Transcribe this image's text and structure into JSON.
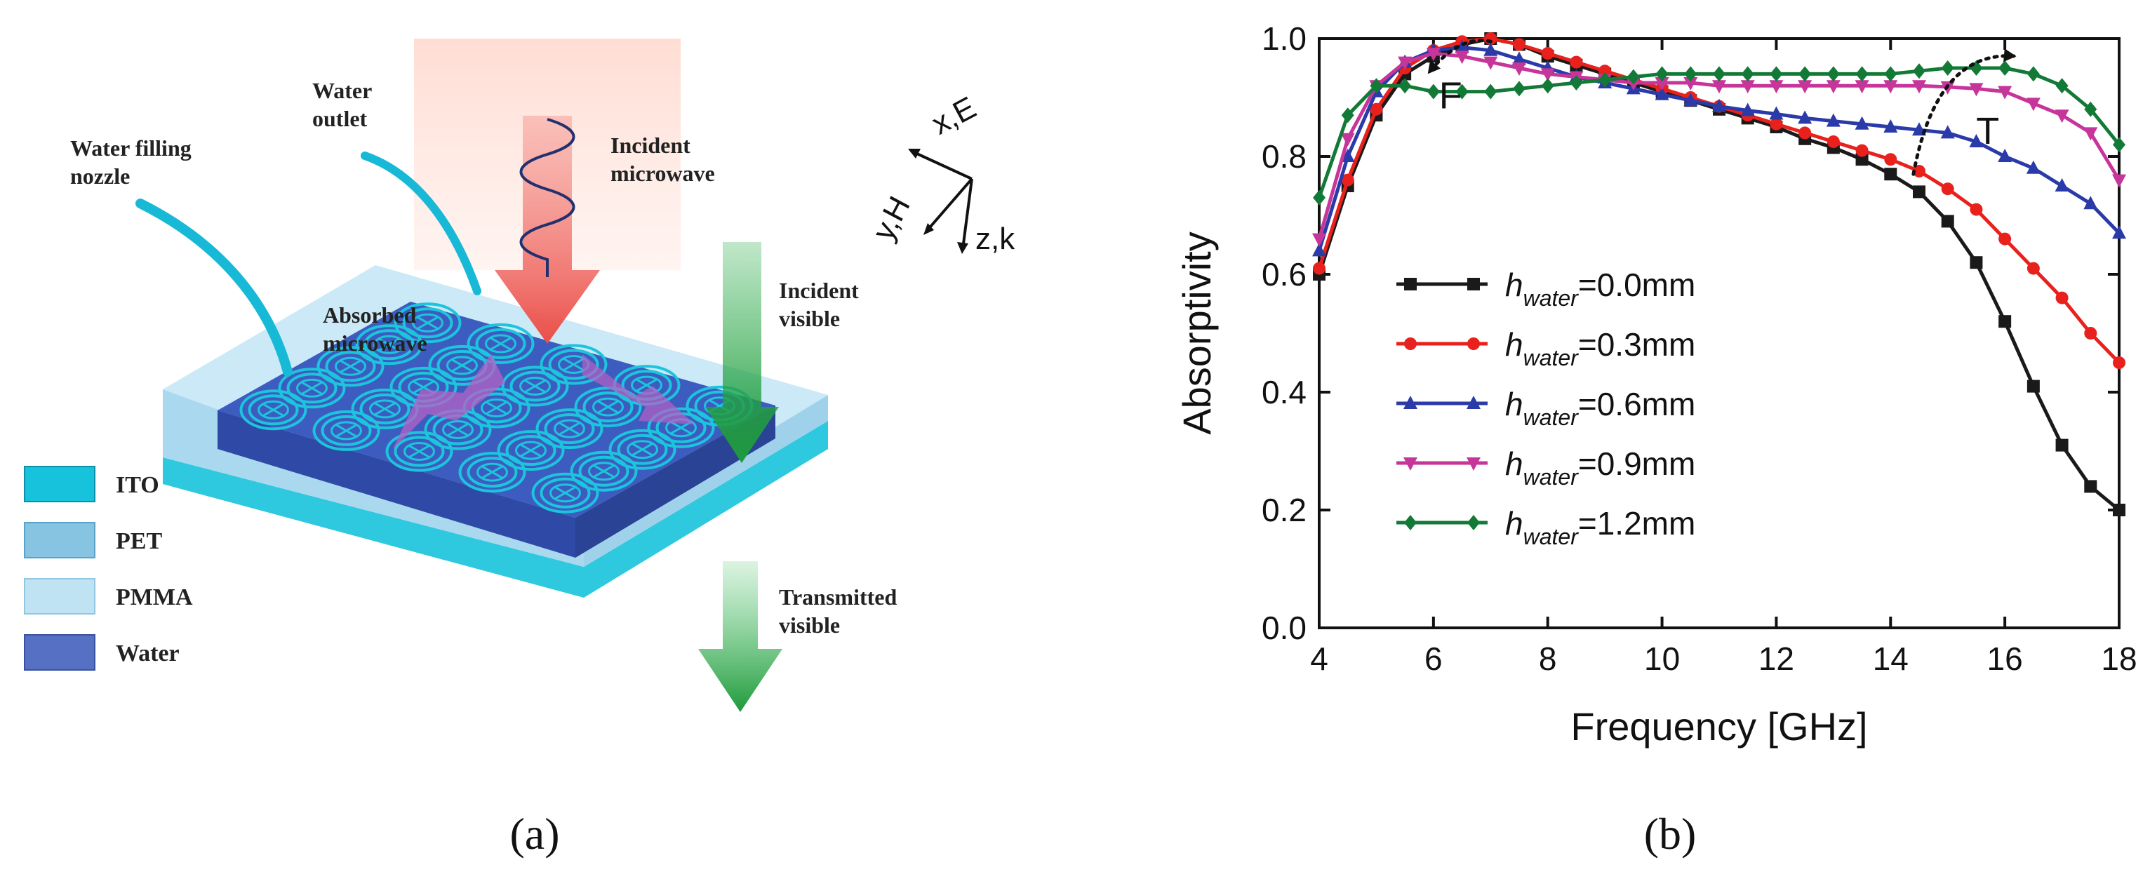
{
  "panel_a": {
    "label": "(a)",
    "annotations": {
      "water_filling_nozzle": [
        "Water  filling",
        "nozzle"
      ],
      "water_outlet": [
        "Water",
        "outlet"
      ],
      "incident_microwave": [
        "Incident",
        "microwave"
      ],
      "absorbed_microwave": [
        "Absorbed",
        "microwave"
      ],
      "incident_visible": [
        "Incident",
        "visible"
      ],
      "transmitted_visible": [
        "Transmitted",
        "visible"
      ]
    },
    "axes": {
      "x": "x,E",
      "y": "y,H",
      "z": "z,k"
    },
    "legend": [
      {
        "label": "ITO",
        "color": "#17c3dc"
      },
      {
        "label": "PET",
        "color": "#86c4e2"
      },
      {
        "label": "PMMA",
        "color": "#bfe3f3"
      },
      {
        "label": "Water",
        "color": "#5670c4"
      }
    ],
    "colors": {
      "substrate": "#bfe3f3",
      "water": "#3d5cc0",
      "ito": "#1cc4dc",
      "microwave_arrow": "#ee5a55",
      "visible_arrow": "#1e9a3c",
      "absorbed_arrow": "#b561c6"
    }
  },
  "panel_b": {
    "label": "(b)",
    "chart_data": {
      "type": "line",
      "xlabel": "Frequency [GHz]",
      "ylabel": "Absorptivity",
      "xlim": [
        4,
        18
      ],
      "ylim": [
        0.0,
        1.0
      ],
      "xticks": [
        4,
        6,
        8,
        10,
        12,
        14,
        16,
        18
      ],
      "yticks": [
        0.0,
        0.2,
        0.4,
        0.6,
        0.8,
        1.0
      ],
      "x": [
        4,
        4.5,
        5,
        5.5,
        6,
        6.5,
        7,
        7.5,
        8,
        8.5,
        9,
        9.5,
        10,
        10.5,
        11,
        11.5,
        12,
        12.5,
        13,
        13.5,
        14,
        14.5,
        15,
        15.5,
        16,
        16.5,
        17,
        17.5,
        18
      ],
      "series": [
        {
          "name": "h_water=0.0mm",
          "prefix": "h",
          "subscript": "water",
          "value_text": "=0.0mm",
          "color": "#1a1a1a",
          "marker": "square",
          "values": [
            0.6,
            0.75,
            0.87,
            0.94,
            0.97,
            0.99,
            1.0,
            0.99,
            0.97,
            0.955,
            0.94,
            0.925,
            0.91,
            0.895,
            0.88,
            0.865,
            0.85,
            0.83,
            0.815,
            0.795,
            0.77,
            0.74,
            0.69,
            0.62,
            0.52,
            0.41,
            0.31,
            0.24,
            0.2
          ]
        },
        {
          "name": "h_water=0.3mm",
          "prefix": "h",
          "subscript": "water",
          "value_text": "=0.3mm",
          "color": "#e8211d",
          "marker": "circle",
          "values": [
            0.61,
            0.76,
            0.88,
            0.95,
            0.98,
            0.995,
            1.0,
            0.99,
            0.975,
            0.96,
            0.945,
            0.93,
            0.915,
            0.9,
            0.885,
            0.87,
            0.855,
            0.84,
            0.825,
            0.81,
            0.795,
            0.775,
            0.745,
            0.71,
            0.66,
            0.61,
            0.56,
            0.5,
            0.45
          ]
        },
        {
          "name": "h_water=0.6mm",
          "prefix": "h",
          "subscript": "water",
          "value_text": "=0.6mm",
          "color": "#2a3aa8",
          "marker": "triangle-up",
          "values": [
            0.64,
            0.8,
            0.91,
            0.96,
            0.98,
            0.985,
            0.98,
            0.965,
            0.95,
            0.935,
            0.925,
            0.915,
            0.905,
            0.895,
            0.885,
            0.878,
            0.872,
            0.865,
            0.86,
            0.855,
            0.85,
            0.845,
            0.84,
            0.825,
            0.8,
            0.78,
            0.75,
            0.72,
            0.67
          ]
        },
        {
          "name": "h_water=0.9mm",
          "prefix": "h",
          "subscript": "water",
          "value_text": "=0.9mm",
          "color": "#c6359a",
          "marker": "triangle-down",
          "values": [
            0.66,
            0.83,
            0.92,
            0.96,
            0.975,
            0.97,
            0.96,
            0.95,
            0.94,
            0.935,
            0.93,
            0.925,
            0.925,
            0.925,
            0.92,
            0.92,
            0.92,
            0.92,
            0.92,
            0.92,
            0.92,
            0.92,
            0.918,
            0.915,
            0.91,
            0.89,
            0.87,
            0.84,
            0.76
          ]
        },
        {
          "name": "h_water=1.2mm",
          "prefix": "h",
          "subscript": "water",
          "value_text": "=1.2mm",
          "color": "#127a36",
          "marker": "diamond",
          "values": [
            0.73,
            0.87,
            0.92,
            0.92,
            0.91,
            0.91,
            0.91,
            0.915,
            0.92,
            0.925,
            0.93,
            0.935,
            0.94,
            0.94,
            0.94,
            0.94,
            0.94,
            0.94,
            0.94,
            0.94,
            0.94,
            0.945,
            0.95,
            0.95,
            0.95,
            0.94,
            0.92,
            0.88,
            0.82
          ]
        }
      ],
      "annotations": [
        {
          "text": "F",
          "x": 6.3,
          "y": 0.91
        },
        {
          "text": "T",
          "x": 15.7,
          "y": 0.85
        }
      ],
      "dotted_arrows": [
        {
          "from": [
            7.0,
            0.995
          ],
          "to": [
            5.9,
            0.94
          ]
        },
        {
          "from": [
            14.4,
            0.77
          ],
          "to": [
            16.2,
            0.97
          ]
        }
      ],
      "legend_position": "center-left"
    }
  }
}
